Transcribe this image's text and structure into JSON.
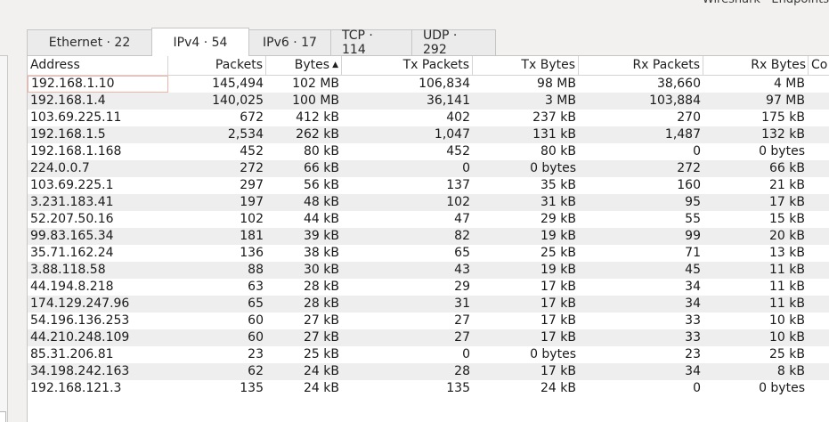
{
  "window": {
    "title": "Wireshark · Endpoints"
  },
  "tabs": [
    {
      "label": "Ethernet · 22",
      "active": false
    },
    {
      "label": "IPv4 · 54",
      "active": true
    },
    {
      "label": "IPv6 · 17",
      "active": false
    },
    {
      "label": "TCP · 114",
      "active": false
    },
    {
      "label": "UDP · 292",
      "active": false
    }
  ],
  "table": {
    "sorted_column": "Bytes",
    "sort_arrow": "▲",
    "columns": [
      "Address",
      "Packets",
      "Bytes",
      "Tx Packets",
      "Tx Bytes",
      "Rx Packets",
      "Rx Bytes",
      "Co"
    ],
    "rows": [
      [
        "192.168.1.10",
        "145,494",
        "102 MB",
        "106,834",
        "98 MB",
        "38,660",
        "4 MB"
      ],
      [
        "192.168.1.4",
        "140,025",
        "100 MB",
        "36,141",
        "3 MB",
        "103,884",
        "97 MB"
      ],
      [
        "103.69.225.11",
        "672",
        "412 kB",
        "402",
        "237 kB",
        "270",
        "175 kB"
      ],
      [
        "192.168.1.5",
        "2,534",
        "262 kB",
        "1,047",
        "131 kB",
        "1,487",
        "132 kB"
      ],
      [
        "192.168.1.168",
        "452",
        "80 kB",
        "452",
        "80 kB",
        "0",
        "0 bytes"
      ],
      [
        "224.0.0.7",
        "272",
        "66 kB",
        "0",
        "0 bytes",
        "272",
        "66 kB"
      ],
      [
        "103.69.225.1",
        "297",
        "56 kB",
        "137",
        "35 kB",
        "160",
        "21 kB"
      ],
      [
        "3.231.183.41",
        "197",
        "48 kB",
        "102",
        "31 kB",
        "95",
        "17 kB"
      ],
      [
        "52.207.50.16",
        "102",
        "44 kB",
        "47",
        "29 kB",
        "55",
        "15 kB"
      ],
      [
        "99.83.165.34",
        "181",
        "39 kB",
        "82",
        "19 kB",
        "99",
        "20 kB"
      ],
      [
        "35.71.162.24",
        "136",
        "38 kB",
        "65",
        "25 kB",
        "71",
        "13 kB"
      ],
      [
        "3.88.118.58",
        "88",
        "30 kB",
        "43",
        "19 kB",
        "45",
        "11 kB"
      ],
      [
        "44.194.8.218",
        "63",
        "28 kB",
        "29",
        "17 kB",
        "34",
        "11 kB"
      ],
      [
        "174.129.247.96",
        "65",
        "28 kB",
        "31",
        "17 kB",
        "34",
        "11 kB"
      ],
      [
        "54.196.136.253",
        "60",
        "27 kB",
        "27",
        "17 kB",
        "33",
        "10 kB"
      ],
      [
        "44.210.248.109",
        "60",
        "27 kB",
        "27",
        "17 kB",
        "33",
        "10 kB"
      ],
      [
        "85.31.206.81",
        "23",
        "25 kB",
        "0",
        "0 bytes",
        "23",
        "25 kB"
      ],
      [
        "34.198.242.163",
        "62",
        "24 kB",
        "28",
        "17 kB",
        "34",
        "8 kB"
      ],
      [
        "192.168.121.3",
        "135",
        "24 kB",
        "135",
        "24 kB",
        "0",
        "0 bytes"
      ]
    ]
  }
}
